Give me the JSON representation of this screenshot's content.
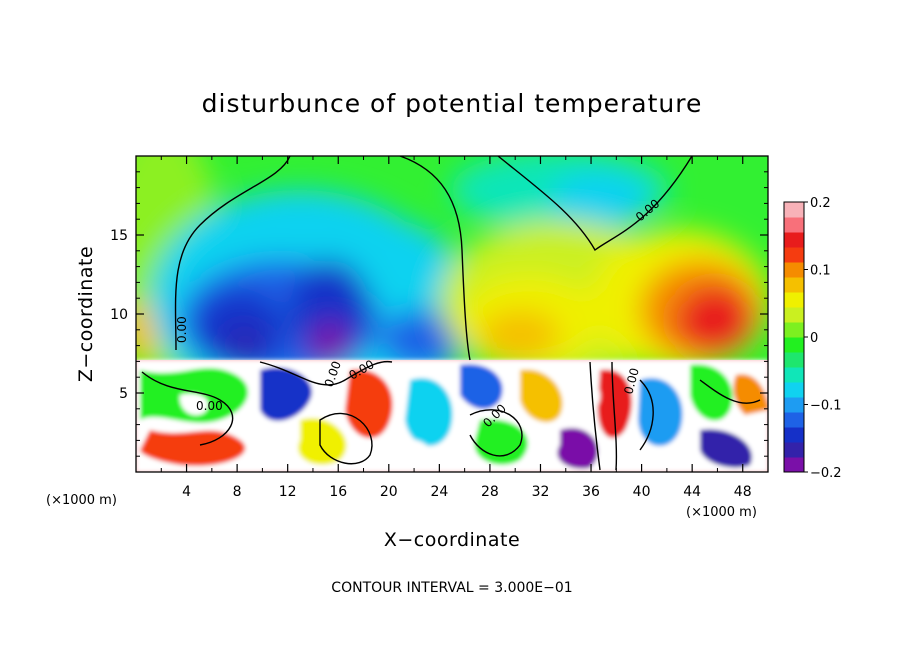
{
  "chart_data": {
    "type": "heatmap",
    "title": "disturbunce of potential temperature",
    "xlabel": "X−coordinate",
    "ylabel": "Z−coordinate",
    "x_unit": "(×1000 m)",
    "z_unit": "(×1000 m)",
    "xlim": [
      0,
      50
    ],
    "ylim": [
      0,
      20
    ],
    "x_ticks": [
      4,
      8,
      12,
      16,
      20,
      24,
      28,
      32,
      36,
      40,
      44,
      48
    ],
    "y_ticks": [
      5,
      10,
      15
    ],
    "colorbar": {
      "range": [
        -0.2,
        0.2
      ],
      "ticks": [
        0.2,
        0.1,
        0,
        -0.1,
        -0.2
      ],
      "tick_labels": [
        "0.2",
        "0.1",
        "0",
        "−0.1",
        "−0.2"
      ],
      "colors": [
        "#7a10a8",
        "#3322aa",
        "#1530c8",
        "#1e62e6",
        "#1e9cf2",
        "#10d2f0",
        "#10e6b8",
        "#1ee66e",
        "#22f020",
        "#7cf020",
        "#caf020",
        "#f0f000",
        "#f5c000",
        "#f58c00",
        "#f53c10",
        "#e81c1c",
        "#f8707a",
        "#f8b2b8"
      ]
    },
    "contour_labels": [
      "0.00",
      "0.00",
      "0.00",
      "0.00",
      "0.00",
      "0.00",
      "0.00",
      "0.00"
    ],
    "contour_interval_text": "CONTOUR INTERVAL = 3.000E−01",
    "notes": "Upper layer (z > ~7.2) is smooth: cold anomaly (blue/purple) over x 4–26, warm anomaly (orange/red) over x 30–50. Lower layer (z < ~7.2) shows turbulent small-scale structure with saturated values."
  }
}
